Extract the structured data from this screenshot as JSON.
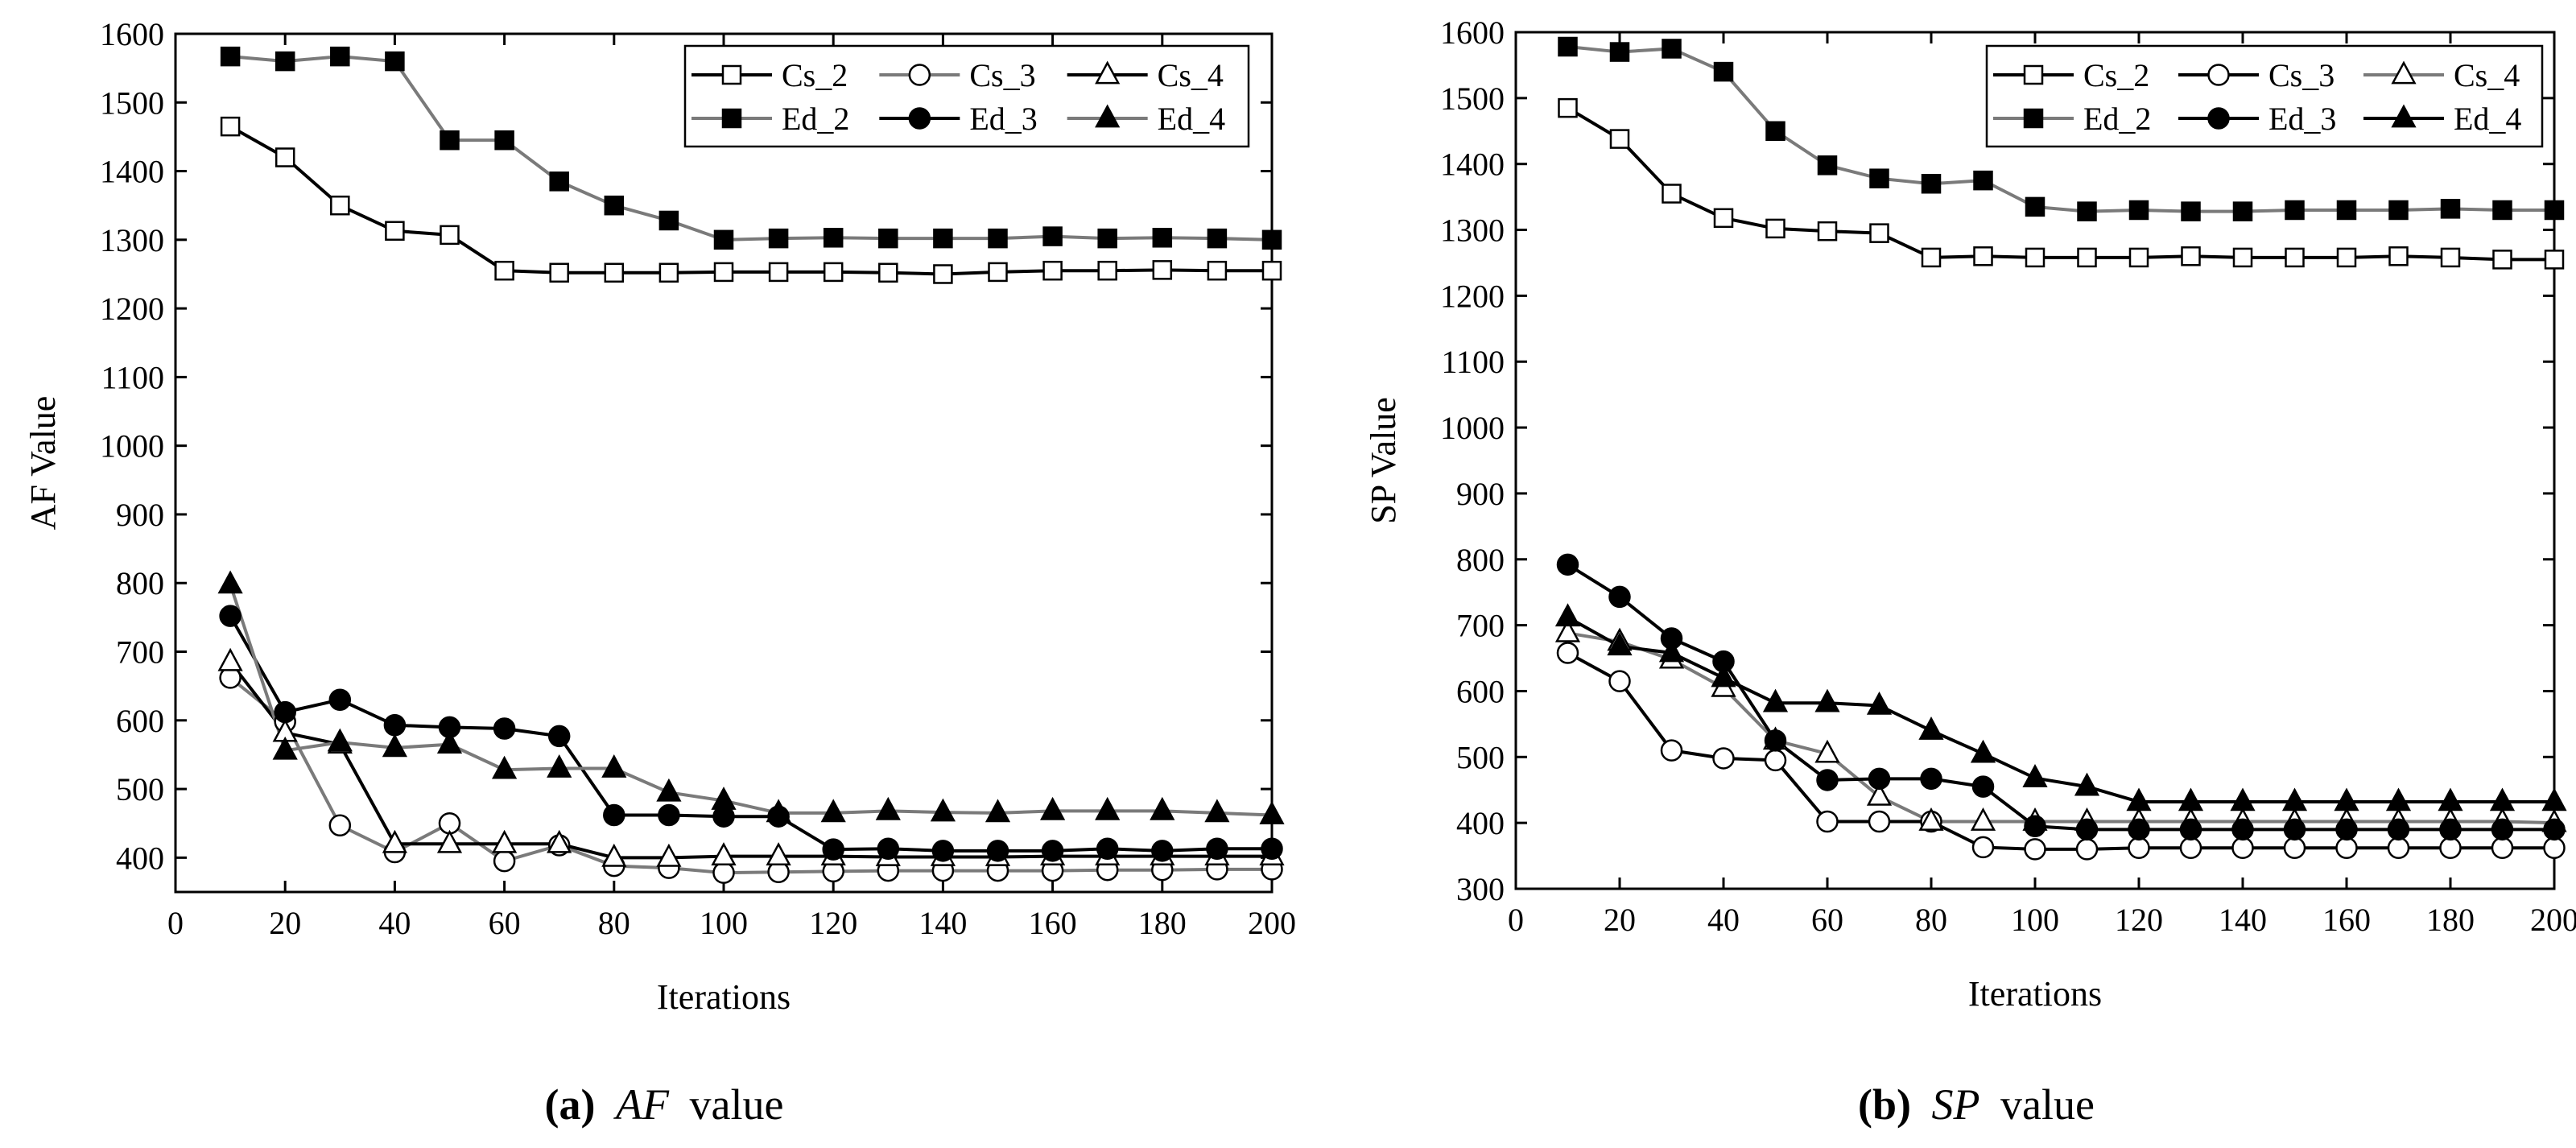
{
  "colors": {
    "black": "#000000",
    "gray": "#7a7a7a",
    "white": "#ffffff"
  },
  "chart_data": [
    {
      "type": "line",
      "id": "af",
      "caption_letter": "(a)",
      "caption_var": "AF",
      "caption_rest": "value",
      "xlabel": "Iterations",
      "ylabel": "AF Value",
      "xlim": [
        0,
        200
      ],
      "ylim": [
        350,
        1600
      ],
      "xticks": [
        0,
        20,
        40,
        60,
        80,
        100,
        120,
        140,
        160,
        180,
        200
      ],
      "yticks": [
        400,
        500,
        600,
        700,
        800,
        900,
        1000,
        1100,
        1200,
        1300,
        1400,
        1500,
        1600
      ],
      "x": [
        10,
        20,
        30,
        40,
        50,
        60,
        70,
        80,
        90,
        100,
        110,
        120,
        130,
        140,
        150,
        160,
        170,
        180,
        190,
        200
      ],
      "legend": "top-right",
      "series": [
        {
          "name": "Cs_2",
          "line": "black",
          "marker": "square",
          "fill": "open",
          "values": [
            1465,
            1420,
            1350,
            1313,
            1307,
            1255,
            1252,
            1252,
            1252,
            1253,
            1253,
            1253,
            1252,
            1250,
            1253,
            1255,
            1255,
            1256,
            1255,
            1255
          ]
        },
        {
          "name": "Cs_3",
          "line": "gray",
          "marker": "circle",
          "fill": "open",
          "values": [
            662,
            598,
            447,
            408,
            450,
            395,
            418,
            388,
            385,
            378,
            379,
            380,
            381,
            381,
            381,
            381,
            382,
            382,
            383,
            383
          ]
        },
        {
          "name": "Cs_4",
          "line": "black",
          "marker": "triangle",
          "fill": "open",
          "values": [
            685,
            582,
            565,
            420,
            420,
            420,
            420,
            400,
            400,
            402,
            402,
            402,
            401,
            401,
            401,
            402,
            402,
            402,
            402,
            402
          ]
        },
        {
          "name": "Ed_2",
          "line": "gray",
          "marker": "square",
          "fill": "filled",
          "values": [
            1567,
            1560,
            1567,
            1560,
            1445,
            1445,
            1385,
            1350,
            1328,
            1300,
            1302,
            1303,
            1302,
            1302,
            1302,
            1305,
            1302,
            1303,
            1302,
            1300
          ]
        },
        {
          "name": "Ed_3",
          "line": "black",
          "marker": "circle",
          "fill": "filled",
          "values": [
            752,
            612,
            630,
            593,
            590,
            588,
            577,
            462,
            462,
            460,
            460,
            412,
            413,
            410,
            410,
            410,
            413,
            410,
            413,
            413
          ]
        },
        {
          "name": "Ed_4",
          "line": "gray",
          "marker": "triangle",
          "fill": "filled",
          "values": [
            798,
            556,
            568,
            560,
            565,
            528,
            530,
            530,
            495,
            483,
            465,
            465,
            468,
            466,
            465,
            468,
            468,
            468,
            465,
            462
          ]
        }
      ]
    },
    {
      "type": "line",
      "id": "sp",
      "caption_letter": "(b)",
      "caption_var": "SP",
      "caption_rest": "value",
      "xlabel": "Iterations",
      "ylabel": "SP Value",
      "xlim": [
        0,
        200
      ],
      "ylim": [
        300,
        1600
      ],
      "xticks": [
        0,
        20,
        40,
        60,
        80,
        100,
        120,
        140,
        160,
        180,
        200
      ],
      "yticks": [
        300,
        400,
        500,
        600,
        700,
        800,
        900,
        1000,
        1100,
        1200,
        1300,
        1400,
        1500,
        1600
      ],
      "x": [
        10,
        20,
        30,
        40,
        50,
        60,
        70,
        80,
        90,
        100,
        110,
        120,
        130,
        140,
        150,
        160,
        170,
        180,
        190,
        200
      ],
      "legend": "top-right",
      "series": [
        {
          "name": "Cs_2",
          "line": "black",
          "marker": "square",
          "fill": "open",
          "values": [
            1485,
            1438,
            1355,
            1318,
            1302,
            1298,
            1295,
            1258,
            1260,
            1258,
            1258,
            1258,
            1260,
            1258,
            1258,
            1258,
            1260,
            1258,
            1255,
            1255
          ]
        },
        {
          "name": "Cs_3",
          "line": "black",
          "marker": "circle",
          "fill": "open",
          "values": [
            658,
            615,
            510,
            498,
            495,
            402,
            402,
            402,
            363,
            360,
            360,
            362,
            362,
            362,
            362,
            362,
            362,
            362,
            362,
            362
          ]
        },
        {
          "name": "Cs_4",
          "line": "gray",
          "marker": "triangle",
          "fill": "open",
          "values": [
            688,
            675,
            648,
            605,
            525,
            505,
            440,
            402,
            402,
            402,
            402,
            402,
            402,
            402,
            402,
            402,
            402,
            402,
            402,
            400
          ]
        },
        {
          "name": "Ed_2",
          "line": "gray",
          "marker": "square",
          "fill": "filled",
          "values": [
            1578,
            1570,
            1575,
            1540,
            1450,
            1398,
            1378,
            1370,
            1375,
            1335,
            1328,
            1330,
            1328,
            1328,
            1330,
            1330,
            1330,
            1332,
            1330,
            1330
          ]
        },
        {
          "name": "Ed_3",
          "line": "black",
          "marker": "circle",
          "fill": "filled",
          "values": [
            792,
            743,
            680,
            645,
            525,
            465,
            467,
            467,
            455,
            395,
            390,
            390,
            390,
            390,
            390,
            390,
            390,
            390,
            390,
            390
          ]
        },
        {
          "name": "Ed_4",
          "line": "black",
          "marker": "triangle",
          "fill": "filled",
          "values": [
            712,
            668,
            658,
            620,
            582,
            582,
            578,
            540,
            505,
            468,
            455,
            432,
            432,
            432,
            432,
            432,
            432,
            432,
            432,
            432
          ]
        }
      ]
    }
  ]
}
